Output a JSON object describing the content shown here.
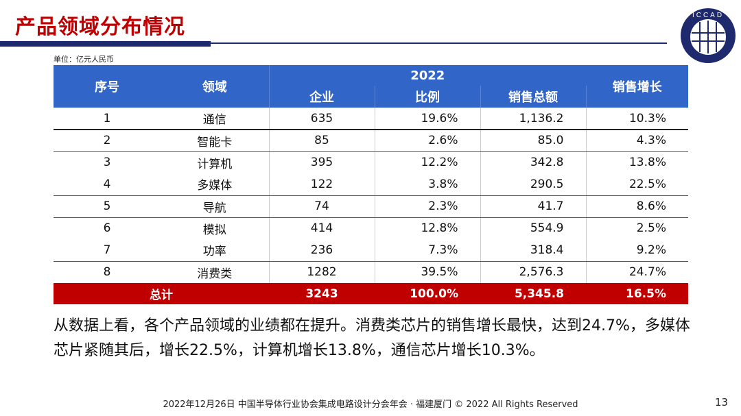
{
  "title": "产品领域分布情况",
  "logo_text": "ICCAD",
  "unit": "单位：亿元人民币",
  "table": {
    "headers": {
      "no": "序号",
      "field": "领域",
      "year": "2022",
      "companies": "企业",
      "ratio": "比例",
      "sales": "销售总额",
      "growth": "销售增长"
    },
    "rows": [
      {
        "no": "1",
        "field": "通信",
        "companies": "635",
        "ratio": "19.6%",
        "sales": "1,136.2",
        "growth": "10.3%"
      },
      {
        "no": "2",
        "field": "智能卡",
        "companies": "85",
        "ratio": "2.6%",
        "sales": "85.0",
        "growth": "4.3%"
      },
      {
        "no": "3",
        "field": "计算机",
        "companies": "395",
        "ratio": "12.2%",
        "sales": "342.8",
        "growth": "13.8%"
      },
      {
        "no": "4",
        "field": "多媒体",
        "companies": "122",
        "ratio": "3.8%",
        "sales": "290.5",
        "growth": "22.5%"
      },
      {
        "no": "5",
        "field": "导航",
        "companies": "74",
        "ratio": "2.3%",
        "sales": "41.7",
        "growth": "8.6%"
      },
      {
        "no": "6",
        "field": "模拟",
        "companies": "414",
        "ratio": "12.8%",
        "sales": "554.9",
        "growth": "2.5%"
      },
      {
        "no": "7",
        "field": "功率",
        "companies": "236",
        "ratio": "7.3%",
        "sales": "318.4",
        "growth": "9.2%"
      },
      {
        "no": "8",
        "field": "消费类",
        "companies": "1282",
        "ratio": "39.5%",
        "sales": "2,576.3",
        "growth": "24.7%"
      }
    ],
    "total": {
      "label": "总计",
      "companies": "3243",
      "ratio": "100.0%",
      "sales": "5,345.8",
      "growth": "16.5%"
    }
  },
  "paragraph": "从数据上看，各个产品领域的业绩都在提升。消费类芯片的销售增长最快，达到24.7%，多媒体芯片紧随其后，增长22.5%，计算机增长13.8%，通信芯片增长10.3%。",
  "footer": "2022年12月26日 中国半导体行业协会集成电路设计分会年会 · 福建厦门 © 2022 All Rights Reserved",
  "page_number": "13",
  "colors": {
    "title": "#c00000",
    "header": "#3265c8",
    "total": "#c00000",
    "bar": "#1f2a6e"
  }
}
